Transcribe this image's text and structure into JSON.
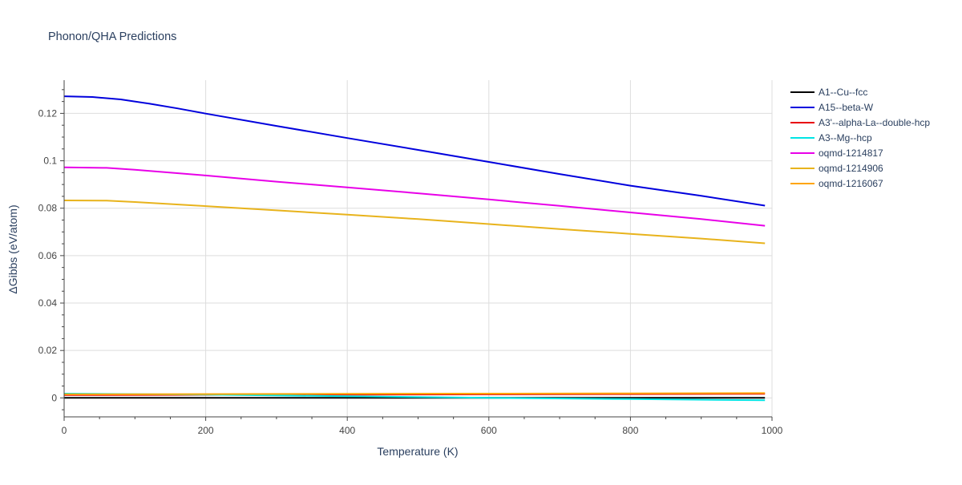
{
  "chart_data": {
    "type": "line",
    "title": "Phonon/QHA Predictions",
    "xlabel": "Temperature (K)",
    "ylabel": "ΔGibbs (eV/atom)",
    "xlim": [
      0,
      1000
    ],
    "ylim": [
      -0.008,
      0.134
    ],
    "xticks": [
      0,
      200,
      400,
      600,
      800,
      1000
    ],
    "xtick_labels": [
      "0",
      "200",
      "400",
      "600",
      "800",
      "1000"
    ],
    "yticks": [
      0,
      0.02,
      0.04,
      0.06,
      0.08,
      0.1,
      0.12
    ],
    "ytick_labels": [
      "0",
      "0.02",
      "0.04",
      "0.06",
      "0.08",
      "0.1",
      "0.12"
    ],
    "grid": true,
    "legend_position": "right",
    "series": [
      {
        "name": "A1--Cu--fcc",
        "color": "#000000",
        "x": [
          0,
          990
        ],
        "y": [
          0.0,
          0.0
        ]
      },
      {
        "name": "A15--beta-W",
        "color": "#0000dd",
        "x": [
          0,
          40,
          80,
          120,
          160,
          200,
          300,
          400,
          500,
          600,
          700,
          800,
          900,
          990
        ],
        "y": [
          0.1272,
          0.1269,
          0.1259,
          0.1241,
          0.1221,
          0.1199,
          0.1147,
          0.1096,
          0.1046,
          0.0995,
          0.0944,
          0.0895,
          0.0852,
          0.0811
        ]
      },
      {
        "name": "A3'--alpha-La--double-hcp",
        "color": "#e8000b",
        "x": [
          0,
          200,
          400,
          600,
          800,
          990
        ],
        "y": [
          0.0012,
          0.0013,
          0.0014,
          0.0015,
          0.0016,
          0.0017
        ]
      },
      {
        "name": "A3--Mg--hcp",
        "color": "#00e5e5",
        "x": [
          0,
          200,
          400,
          600,
          800,
          990
        ],
        "y": [
          0.0018,
          0.0014,
          0.0007,
          0.0,
          -0.0005,
          -0.001
        ]
      },
      {
        "name": "oqmd-1214817",
        "color": "#e800e8",
        "x": [
          0,
          60,
          100,
          200,
          300,
          400,
          500,
          600,
          700,
          800,
          900,
          990
        ],
        "y": [
          0.0972,
          0.097,
          0.0962,
          0.0938,
          0.0912,
          0.0888,
          0.0863,
          0.0837,
          0.081,
          0.0782,
          0.0754,
          0.0726
        ]
      },
      {
        "name": "oqmd-1214906",
        "color": "#e8b31c",
        "x": [
          0,
          60,
          100,
          200,
          300,
          400,
          500,
          600,
          700,
          800,
          900,
          990
        ],
        "y": [
          0.0833,
          0.0832,
          0.0826,
          0.0809,
          0.0791,
          0.0773,
          0.0754,
          0.0733,
          0.0712,
          0.0692,
          0.0672,
          0.0652
        ]
      },
      {
        "name": "oqmd-1216067",
        "color": "#ffa500",
        "x": [
          0,
          200,
          400,
          600,
          800,
          990
        ],
        "y": [
          0.0015,
          0.0016,
          0.0017,
          0.0018,
          0.0019,
          0.002
        ]
      }
    ]
  }
}
